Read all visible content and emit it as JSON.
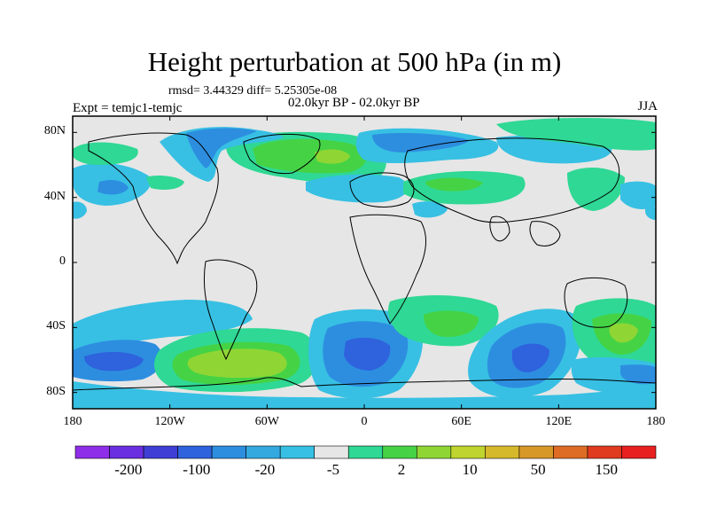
{
  "title": "Height perturbation at 500 hPa (in m)",
  "stats": "rmsd= 3.44329 diff= 5.25305e-08",
  "experiment": "Expt = temjc1-temjc",
  "period": "02.0kyr BP - 02.0kyr BP",
  "season": "JJA",
  "map": {
    "projection": "cylindrical equidistant",
    "background": "#e6e6e6",
    "lat_ticks": [
      "80N",
      "40N",
      "0",
      "40S",
      "80S"
    ],
    "lon_ticks": [
      "180",
      "120W",
      "60W",
      "0",
      "60E",
      "120E",
      "180"
    ]
  },
  "colorbar": {
    "colors": [
      "#8f2ee8",
      "#6a2fe0",
      "#3f3fd6",
      "#2f62dd",
      "#2d8ee0",
      "#33a9e0",
      "#37c0e3",
      "#e6e6e6",
      "#2fd894",
      "#45d345",
      "#8fd635",
      "#bfd42e",
      "#d6b82b",
      "#d89828",
      "#de6c24",
      "#e03a1f",
      "#e82020"
    ],
    "labels": [
      "-200",
      "-100",
      "-20",
      "-5",
      "2",
      "10",
      "50",
      "150"
    ]
  },
  "legend_colors": {
    "strong_negative": "#2f62dd",
    "negative": "#2d8ee0",
    "weak_negative": "#37c0e3",
    "weak_positive": "#2fd894",
    "positive": "#45d345",
    "strong_positive": "#8fd635"
  }
}
